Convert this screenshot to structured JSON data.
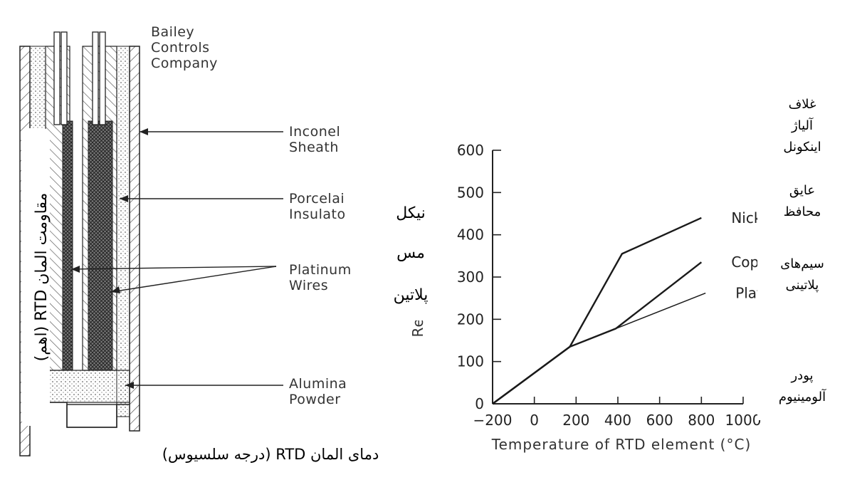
{
  "company": [
    "Bailey",
    "Controls",
    "Company"
  ],
  "sheath_labels": {
    "inconel": [
      "Inconel",
      "Sheath"
    ],
    "porcelain": [
      "Porcelai",
      "Insulato"
    ],
    "platinum": [
      "Platinum",
      "Wires"
    ],
    "alumina": [
      "Alumina",
      "Powder"
    ]
  },
  "persian": {
    "y_label": "مقاومت المان RTD (اهم)",
    "x_label": "دمای المان RTD (درجه سلسیوس)",
    "nickel": "نیکل",
    "copper": "مس",
    "platinum": "پلاتین",
    "inconel_sheath": [
      "غلاف",
      "آلیاژ",
      "اینکونل"
    ],
    "insulator": [
      "عایق",
      "محافظ"
    ],
    "platinum_wires": [
      "سیم‌های",
      "پلاتینی"
    ],
    "alumina": [
      "پودر",
      "آلومینیوم"
    ]
  },
  "chart_data": {
    "type": "line",
    "xlabel": "Temperature of RTD element (°C)",
    "ylabel": "Resistance (Ω)",
    "xlim": [
      -200,
      1000
    ],
    "ylim": [
      0,
      600
    ],
    "x_ticks": [
      "−200",
      "0",
      "200",
      "400",
      "600",
      "800",
      "1000"
    ],
    "y_ticks": [
      "0",
      "100",
      "200",
      "300",
      "400",
      "500",
      "600"
    ],
    "series": [
      {
        "name": "Nickel",
        "x": [
          -200,
          170,
          420,
          800
        ],
        "y": [
          0,
          135,
          355,
          440
        ]
      },
      {
        "name": "Copper",
        "x": [
          -200,
          170,
          390,
          800
        ],
        "y": [
          0,
          135,
          178,
          335
        ]
      },
      {
        "name": "Platinum",
        "x": [
          -200,
          170,
          390,
          820
        ],
        "y": [
          0,
          135,
          178,
          262
        ]
      }
    ]
  }
}
